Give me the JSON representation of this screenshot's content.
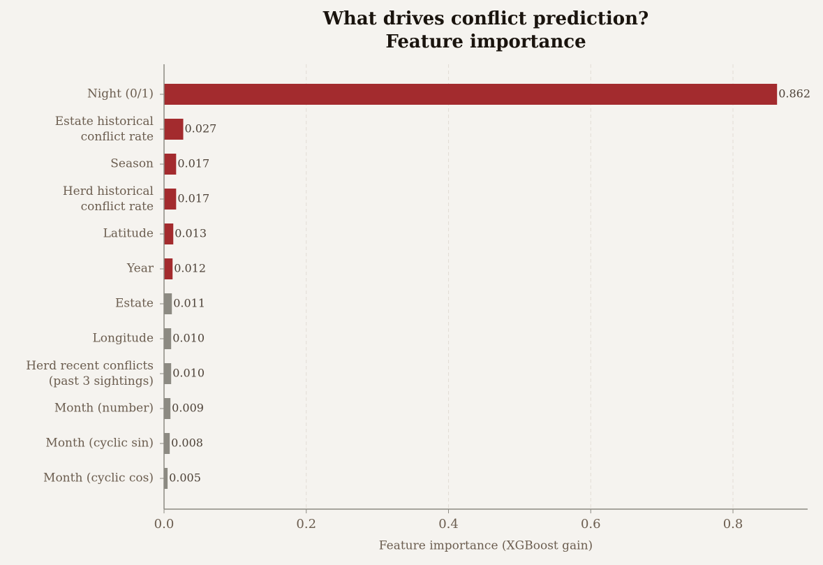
{
  "chart_data": {
    "type": "barh",
    "title": "What drives conflict prediction?\nFeature importance",
    "xlabel": "Feature importance (XGBoost gain)",
    "categories": [
      "Night (0/1)",
      "Estate historical\nconflict rate",
      "Season",
      "Herd historical\nconflict rate",
      "Latitude",
      "Year",
      "Estate",
      "Longitude",
      "Herd recent conflicts\n(past 3 sightings)",
      "Month (number)",
      "Month (cyclic sin)",
      "Month (cyclic cos)"
    ],
    "values": [
      0.862,
      0.027,
      0.017,
      0.017,
      0.013,
      0.012,
      0.011,
      0.01,
      0.01,
      0.009,
      0.008,
      0.005
    ],
    "value_labels": [
      "0.862",
      "0.027",
      "0.017",
      "0.017",
      "0.013",
      "0.012",
      "0.011",
      "0.010",
      "0.010",
      "0.009",
      "0.008",
      "0.005"
    ],
    "colors": [
      "#a32b2e",
      "#a32b2e",
      "#a32b2e",
      "#a32b2e",
      "#a32b2e",
      "#a32b2e",
      "#8c8a82",
      "#8c8a82",
      "#8c8a82",
      "#8c8a82",
      "#8c8a82",
      "#8c8a82"
    ],
    "xlim": [
      0,
      0.905
    ],
    "xticks": [
      {
        "value": 0,
        "label": "0.0"
      },
      0.2,
      0.4,
      0.6,
      0.8
    ],
    "grid": true
  }
}
